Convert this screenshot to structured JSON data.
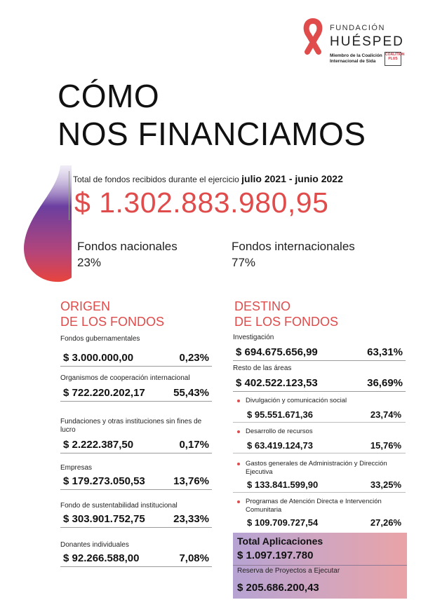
{
  "logo": {
    "line1": "FUNDACIÓN",
    "line2": "HUÉSPED",
    "coalition": "Miembro de la Coalición Internacional de Sida",
    "badge": "COALITION PLUS"
  },
  "title": {
    "line1": "CÓMO",
    "line2": "NOS FINANCIAMOS"
  },
  "totals": {
    "label": "Total de fondos recibidos durante el ejercicio",
    "period": "julio 2021 - junio 2022",
    "amount": "$ 1.302.883.980,95"
  },
  "split": {
    "nacional_label": "Fondos nacionales",
    "nacional_pct": "23%",
    "internacional_label": "Fondos internacionales",
    "internacional_pct": "77%"
  },
  "origen": {
    "title1": "ORIGEN",
    "title2": "DE LOS FONDOS",
    "items": [
      {
        "label": "Fondos gubernamentales",
        "amount": "$ 3.000.000,00",
        "pct": "0,23%"
      },
      {
        "label": "Organismos de cooperación internacional",
        "amount": "$ 722.220.202,17",
        "pct": "55,43%"
      },
      {
        "label": "Fundaciones y otras instituciones sin fines de lucro",
        "amount": "$ 2.222.387,50",
        "pct": "0,17%"
      },
      {
        "label": "Empresas",
        "amount": "$ 179.273.050,53",
        "pct": "13,76%"
      },
      {
        "label": "Fondo de sustentabilidad institucional",
        "amount": "$ 303.901.752,75",
        "pct": "23,33%"
      },
      {
        "label": "Donantes individuales",
        "amount": "$ 92.266.588,00",
        "pct": "7,08%"
      }
    ]
  },
  "destino": {
    "title1": "DESTINO",
    "title2": "DE LOS FONDOS",
    "items": [
      {
        "label": "Investigación",
        "amount": "$ 694.675.656,99",
        "pct": "63,31%"
      },
      {
        "label": "Resto de las áreas",
        "amount": "$ 402.522.123,53",
        "pct": "36,69%"
      }
    ],
    "subitems": [
      {
        "label": "Divulgación y comunicación social",
        "amount": "$ 95.551.671,36",
        "pct": "23,74%"
      },
      {
        "label": "Desarrollo de recursos",
        "amount": "$ 63.419.124,73",
        "pct": "15,76%"
      },
      {
        "label": "Gastos generales de Administración y Dirección Ejecutiva",
        "amount": "$ 133.841.599,90",
        "pct": "33,25%"
      },
      {
        "label": "Programas de Atención Directa e Intervención Comunitaria",
        "amount": "$ 109.709.727,54",
        "pct": "27,26%"
      }
    ],
    "total_label": "Total Aplicaciones",
    "total_amount": "$ 1.097.197.780",
    "reserva_label": "Reserva de Proyectos a Ejecutar",
    "reserva_amount": "$ 205.686.200,43"
  },
  "colors": {
    "accent": "#e04b4b",
    "text": "#1a1a1a"
  }
}
